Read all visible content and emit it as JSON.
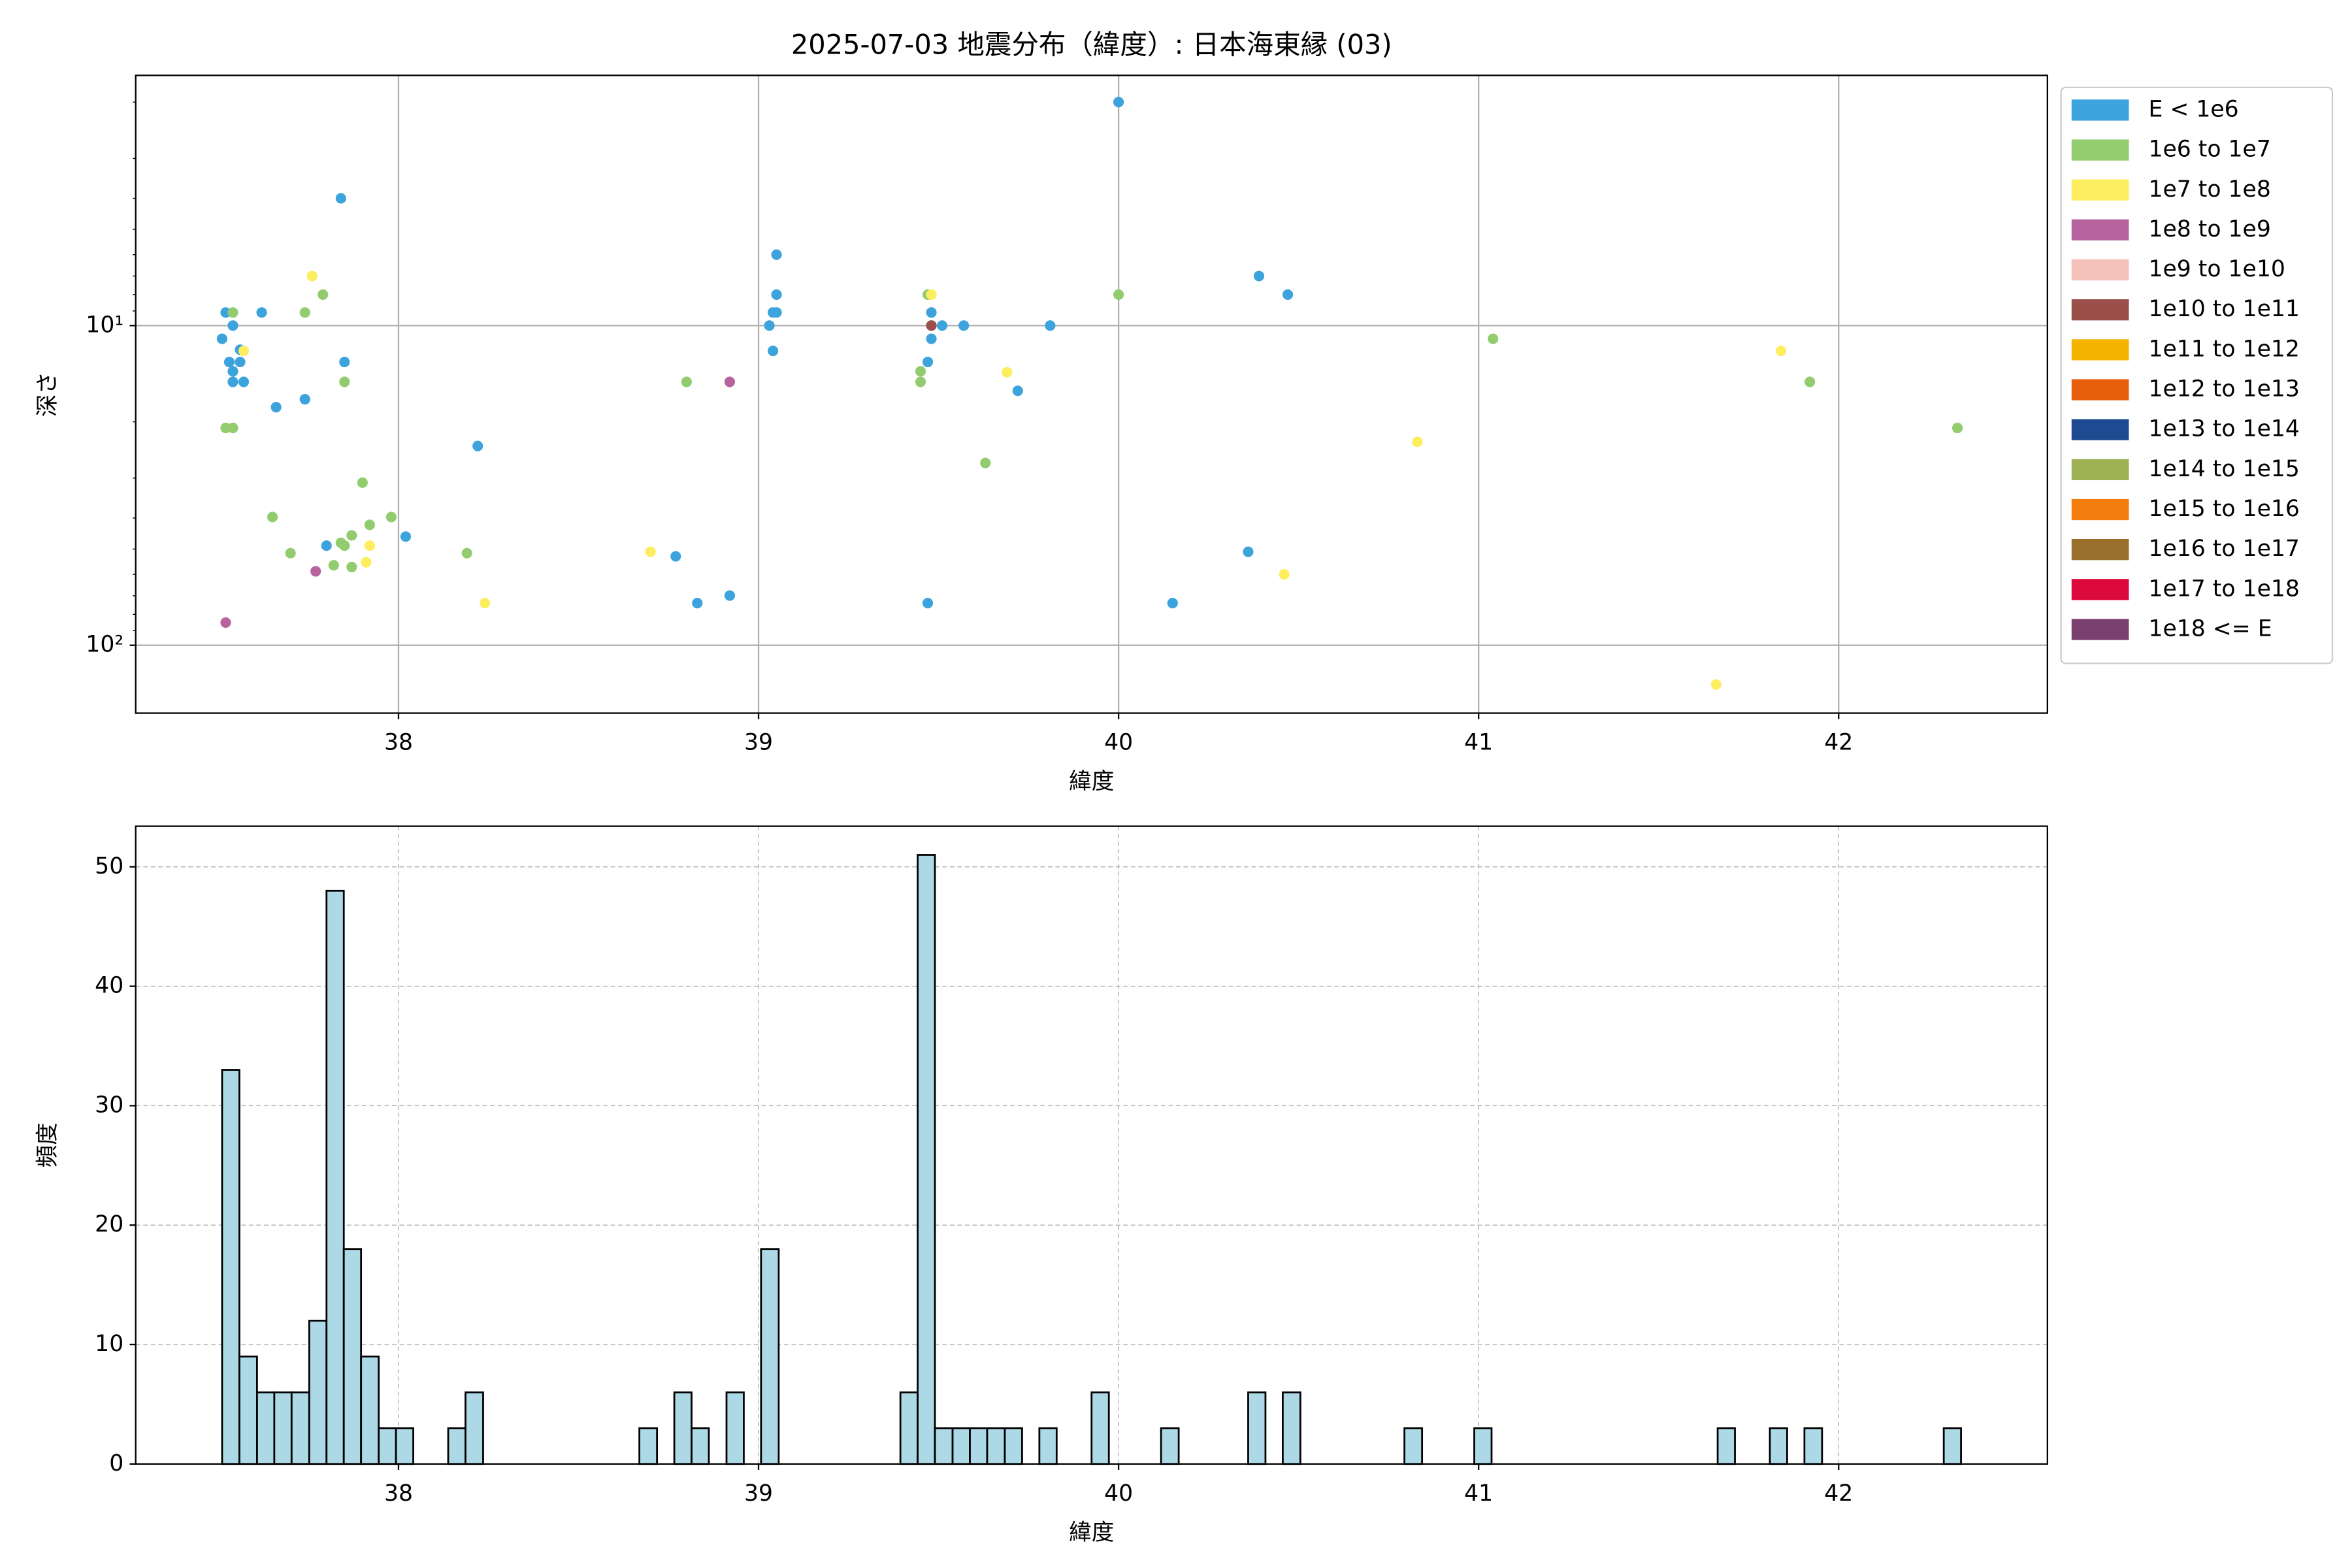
{
  "chart_data": [
    {
      "type": "scatter",
      "title": "2025-07-03 地震分布（緯度）: 日本海東縁 (03)",
      "xlabel": "緯度",
      "ylabel": "深さ",
      "xlim": [
        37.27,
        42.58
      ],
      "ylim": [
        163,
        1.65
      ],
      "log_y": true,
      "xticks": [
        38,
        39,
        40,
        41,
        42
      ],
      "yticks": [
        {
          "value": 10,
          "label": "10¹"
        },
        {
          "value": 100,
          "label": "10²"
        }
      ],
      "yminorticks": [
        2,
        3,
        4,
        5,
        6,
        7,
        8,
        9,
        20,
        30,
        40,
        50,
        60,
        70,
        80,
        90
      ],
      "grid": true,
      "grid_linestyle": "solid",
      "legend": "outside-right",
      "series": [
        {
          "name": "E < 1e6",
          "color": "#3ca3dc",
          "x": [
            37.52,
            37.54,
            37.51,
            37.53,
            37.54,
            37.54,
            37.57,
            37.56,
            37.56,
            37.62,
            37.66,
            37.74,
            37.85,
            37.84,
            37.8,
            38.02,
            38.22,
            38.77,
            38.83,
            38.92,
            39.05,
            39.05,
            39.04,
            39.05,
            39.03,
            39.04,
            40.0,
            39.48,
            39.51,
            39.57,
            39.48,
            39.47,
            39.72,
            39.81,
            40.39,
            40.47,
            40.36,
            40.15,
            39.47,
            39.48
          ],
          "y": [
            9.1,
            10,
            11.0,
            13.0,
            13.9,
            15.0,
            15.0,
            13.0,
            11.9,
            9.1,
            18.0,
            17.0,
            13.0,
            4.0,
            48.8,
            45.7,
            23.8,
            52.7,
            73.8,
            69.9,
            6.0,
            8.0,
            9.1,
            9.1,
            10,
            12.0,
            2.0,
            9.1,
            10,
            10,
            11.0,
            13.0,
            16.0,
            10,
            7.0,
            8.0,
            51.0,
            73.8,
            73.8,
            10
          ]
        },
        {
          "name": "1e6 to 1e7",
          "color": "#92cc6f",
          "x": [
            37.52,
            37.54,
            37.54,
            37.65,
            37.7,
            37.74,
            37.79,
            37.85,
            37.9,
            37.92,
            37.87,
            37.84,
            37.85,
            37.82,
            37.87,
            37.98,
            38.19,
            38.8,
            39.45,
            39.45,
            39.47,
            39.63,
            40.0,
            41.04,
            41.92,
            42.33
          ],
          "y": [
            20.9,
            20.9,
            9.1,
            39.7,
            51.5,
            9.1,
            8.0,
            15.0,
            31.0,
            42.0,
            45.3,
            47.8,
            48.8,
            56.2,
            56.9,
            39.7,
            51.5,
            15.0,
            13.9,
            15.0,
            8.0,
            26.9,
            8.0,
            11.0,
            15.0,
            20.9
          ]
        },
        {
          "name": "1e7 to 1e8",
          "color": "#fdee5f",
          "x": [
            37.76,
            37.57,
            37.91,
            37.92,
            38.24,
            38.7,
            39.48,
            39.69,
            40.46,
            40.83,
            41.84,
            41.66
          ],
          "y": [
            7.0,
            12.0,
            55.0,
            48.8,
            73.8,
            51.0,
            8.0,
            14.0,
            60.0,
            23.1,
            12.0,
            132.6
          ]
        },
        {
          "name": "1e8 to 1e9",
          "color": "#b7649e",
          "x": [
            37.52,
            37.77,
            38.92
          ],
          "y": [
            84.9,
            58.7,
            15.0
          ]
        },
        {
          "name": "1e9 to 1e10",
          "color": "#f5c0ba",
          "x": [],
          "y": []
        },
        {
          "name": "1e10 to 1e11",
          "color": "#9a4f4b",
          "x": [
            39.48
          ],
          "y": [
            10
          ]
        },
        {
          "name": "1e11 to 1e12",
          "color": "#f5b400",
          "x": [],
          "y": []
        },
        {
          "name": "1e12 to 1e13",
          "color": "#e8600d",
          "x": [],
          "y": []
        },
        {
          "name": "1e13 to 1e14",
          "color": "#1d4a91",
          "x": [],
          "y": []
        },
        {
          "name": "1e14 to 1e15",
          "color": "#9db054",
          "x": [],
          "y": []
        },
        {
          "name": "1e15 to 1e16",
          "color": "#f57d0d",
          "x": [],
          "y": []
        },
        {
          "name": "1e16 to 1e17",
          "color": "#9a6f2b",
          "x": [],
          "y": []
        },
        {
          "name": "1e17 to 1e18",
          "color": "#dc0a3c",
          "x": [],
          "y": []
        },
        {
          "name": "1e18 <= E",
          "color": "#7a4070",
          "x": [],
          "y": []
        }
      ]
    },
    {
      "type": "histogram",
      "xlabel": "緯度",
      "ylabel": "頻度",
      "xlim": [
        37.27,
        42.58
      ],
      "ylim": [
        0,
        53.4
      ],
      "xticks": [
        38,
        39,
        40,
        41,
        42
      ],
      "yticks": [
        0,
        10,
        20,
        30,
        40,
        50
      ],
      "grid": true,
      "grid_linestyle": "dashed",
      "color": "#add8e6",
      "edgecolor": "#000000",
      "bins": [
        37.51,
        37.558,
        37.607,
        37.655,
        37.703,
        37.752,
        37.8,
        37.848,
        37.896,
        37.945,
        37.993,
        38.041,
        38.09,
        38.138,
        38.186,
        38.235,
        38.283,
        38.331,
        38.379,
        38.428,
        38.476,
        38.524,
        38.573,
        38.621,
        38.669,
        38.718,
        38.766,
        38.814,
        38.862,
        38.911,
        38.959,
        39.007,
        39.056,
        39.104,
        39.152,
        39.201,
        39.249,
        39.297,
        39.345,
        39.394,
        39.442,
        39.49,
        39.539,
        39.587,
        39.635,
        39.684,
        39.732,
        39.78,
        39.828,
        39.877,
        39.925,
        39.973,
        40.022,
        40.07,
        40.118,
        40.167,
        40.215,
        40.263,
        40.311,
        40.36,
        40.408,
        40.456,
        40.505,
        40.553,
        40.601,
        40.65,
        40.698,
        40.746,
        40.794,
        40.843,
        40.891,
        40.939,
        40.988,
        41.036,
        41.084,
        41.133,
        41.181,
        41.229,
        41.277,
        41.326,
        41.374,
        41.422,
        41.471,
        41.519,
        41.567,
        41.616,
        41.664,
        41.712,
        41.76,
        41.809,
        41.857,
        41.905,
        41.954,
        42.002,
        42.05,
        42.099,
        42.147,
        42.195,
        42.243,
        42.292,
        42.34
      ],
      "values": [
        33,
        9,
        6,
        6,
        6,
        12,
        48,
        18,
        9,
        3,
        3,
        0,
        0,
        3,
        6,
        0,
        0,
        0,
        0,
        0,
        0,
        0,
        0,
        0,
        3,
        0,
        6,
        3,
        0,
        6,
        0,
        18,
        0,
        0,
        0,
        0,
        0,
        0,
        0,
        6,
        51,
        3,
        3,
        3,
        3,
        3,
        0,
        3,
        0,
        0,
        6,
        0,
        0,
        0,
        3,
        0,
        0,
        0,
        0,
        6,
        0,
        6,
        0,
        0,
        0,
        0,
        0,
        0,
        3,
        0,
        0,
        0,
        3,
        0,
        0,
        0,
        0,
        0,
        0,
        0,
        0,
        0,
        0,
        0,
        0,
        0,
        3,
        0,
        0,
        3,
        0,
        3,
        0,
        0,
        0,
        0,
        0,
        0,
        0,
        3
      ]
    }
  ]
}
